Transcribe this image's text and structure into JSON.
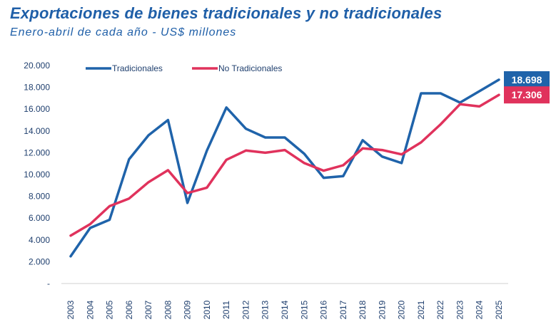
{
  "title": "Exportaciones de bienes tradicionales y no tradicionales",
  "subtitle": "Enero-abril de cada año - US$ millones",
  "chart_data": {
    "type": "line",
    "x": [
      "2003",
      "2004",
      "2005",
      "2006",
      "2007",
      "2008",
      "2009",
      "2010",
      "2011",
      "2012",
      "2013",
      "2014",
      "2015",
      "2016",
      "2017",
      "2018",
      "2019",
      "2020",
      "2021",
      "2022",
      "2023",
      "2024",
      "2025"
    ],
    "ylim": [
      0,
      20000
    ],
    "yticks": [
      0,
      2000,
      4000,
      6000,
      8000,
      10000,
      12000,
      14000,
      16000,
      18000,
      20000
    ],
    "ytick_labels": [
      "-",
      "2.000",
      "4.000",
      "6.000",
      "8.000",
      "10.000",
      "12.000",
      "14.000",
      "16.000",
      "18.000",
      "20.000"
    ],
    "legend_position": "top-left",
    "grid": false,
    "series": [
      {
        "name": "Tradicionales",
        "color": "#1f63aa",
        "values": [
          2500,
          5100,
          5850,
          11400,
          13600,
          15000,
          7400,
          12200,
          16150,
          14200,
          13400,
          13400,
          11900,
          9700,
          9850,
          13150,
          11650,
          11050,
          17450,
          17450,
          16600,
          17650,
          18698
        ]
      },
      {
        "name": "No Tradicionales",
        "color": "#e0325c",
        "values": [
          4400,
          5450,
          7100,
          7800,
          9300,
          10400,
          8300,
          8800,
          11350,
          12200,
          12000,
          12250,
          11050,
          10350,
          10850,
          12400,
          12250,
          11850,
          12950,
          14600,
          16450,
          16250,
          17306
        ]
      }
    ],
    "end_labels": [
      {
        "series": "Tradicionales",
        "text": "18.698",
        "color": "#1f63aa"
      },
      {
        "series": "No Tradicionales",
        "text": "17.306",
        "color": "#e0325c"
      }
    ]
  }
}
